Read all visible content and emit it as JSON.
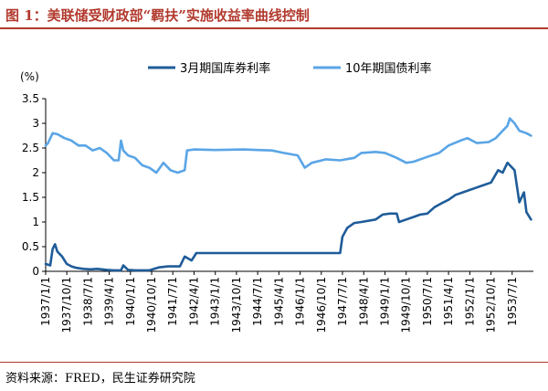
{
  "title": "图 1：美联储受财政部“羁扶”实施收益率曲线控制",
  "source": "资料来源：FRED，民生证券研究院",
  "chart_data": {
    "type": "line",
    "ylabel": "(%)",
    "ylim": [
      0,
      3.5
    ],
    "yticks": [
      0,
      0.5,
      1,
      1.5,
      2,
      2.5,
      3,
      3.5
    ],
    "ytick_labels": [
      "0",
      "0.5",
      "1",
      "1.5",
      "2",
      "2.5",
      "3",
      "3.5"
    ],
    "xlim": [
      "1937-01-01",
      "1954-04-01"
    ],
    "xticks": [
      "1937-01-01",
      "1937-10-01",
      "1938-07-01",
      "1939-04-01",
      "1940-01-01",
      "1940-10-01",
      "1941-07-01",
      "1942-04-01",
      "1943-01-01",
      "1943-10-01",
      "1944-07-01",
      "1945-04-01",
      "1946-01-01",
      "1946-10-01",
      "1947-07-01",
      "1948-04-01",
      "1949-01-01",
      "1949-10-01",
      "1950-07-01",
      "1951-04-01",
      "1952-01-01",
      "1952-10-01",
      "1953-07-01"
    ],
    "xtick_labels": [
      "1937/1/1",
      "1937/10/1",
      "1938/7/1",
      "1939/4/1",
      "1940/1/1",
      "1940/10/1",
      "1941/7/1",
      "1942/4/1",
      "1943/1/1",
      "1943/10/1",
      "1944/7/1",
      "1945/4/1",
      "1946/1/1",
      "1946/10/1",
      "1947/7/1",
      "1948/4/1",
      "1949/1/1",
      "1949/10/1",
      "1950/7/1",
      "1951/4/1",
      "1952/1/1",
      "1952/10/1",
      "1953/7/1"
    ],
    "legend_position": "top",
    "grid": false,
    "series": [
      {
        "name": "3月期国库券利率",
        "color": "#1f5c99",
        "x": [
          "1937-01-01",
          "1937-03-01",
          "1937-04-01",
          "1937-05-01",
          "1937-06-01",
          "1937-08-01",
          "1937-10-01",
          "1937-12-01",
          "1938-02-01",
          "1938-05-01",
          "1938-08-01",
          "1938-11-01",
          "1939-03-01",
          "1939-06-01",
          "1939-09-01",
          "1939-10-01",
          "1939-12-01",
          "1940-03-01",
          "1940-06-01",
          "1940-09-01",
          "1941-01-01",
          "1941-05-01",
          "1941-07-01",
          "1941-10-01",
          "1941-12-01",
          "1942-03-01",
          "1942-05-01",
          "1942-08-01",
          "1943-01-01",
          "1944-01-01",
          "1945-01-01",
          "1946-01-01",
          "1947-01-01",
          "1947-06-01",
          "1947-07-01",
          "1947-09-01",
          "1947-12-01",
          "1948-03-01",
          "1948-09-01",
          "1948-12-01",
          "1949-03-01",
          "1949-06-01",
          "1949-07-01",
          "1949-10-01",
          "1950-01-01",
          "1950-04-01",
          "1950-07-01",
          "1950-10-01",
          "1951-01-01",
          "1951-04-01",
          "1951-07-01",
          "1951-10-01",
          "1952-01-01",
          "1952-04-01",
          "1952-07-01",
          "1952-10-01",
          "1953-01-01",
          "1953-03-01",
          "1953-05-01",
          "1953-06-01",
          "1953-08-01",
          "1953-10-01",
          "1953-12-01",
          "1954-01-01",
          "1954-03-01"
        ],
        "y": [
          0.15,
          0.12,
          0.45,
          0.55,
          0.4,
          0.3,
          0.15,
          0.1,
          0.07,
          0.05,
          0.04,
          0.05,
          0.03,
          0.02,
          0.02,
          0.12,
          0.03,
          0.02,
          0.02,
          0.02,
          0.08,
          0.1,
          0.1,
          0.1,
          0.3,
          0.22,
          0.37,
          0.37,
          0.37,
          0.37,
          0.37,
          0.37,
          0.37,
          0.37,
          0.7,
          0.88,
          0.98,
          1.0,
          1.05,
          1.15,
          1.17,
          1.17,
          1.0,
          1.05,
          1.1,
          1.15,
          1.17,
          1.3,
          1.38,
          1.45,
          1.55,
          1.6,
          1.65,
          1.7,
          1.75,
          1.8,
          2.05,
          2.0,
          2.2,
          2.15,
          2.05,
          1.4,
          1.6,
          1.2,
          1.05
        ]
      },
      {
        "name": "10年期国债利率",
        "color": "#5aa5e6",
        "x": [
          "1937-01-01",
          "1937-02-01",
          "1937-04-01",
          "1937-06-01",
          "1937-09-01",
          "1937-12-01",
          "1938-03-01",
          "1938-06-01",
          "1938-09-01",
          "1938-12-01",
          "1939-03-01",
          "1939-06-01",
          "1939-08-01",
          "1939-09-01",
          "1939-10-01",
          "1939-12-01",
          "1940-03-01",
          "1940-06-01",
          "1940-09-01",
          "1940-12-01",
          "1941-03-01",
          "1941-06-01",
          "1941-09-01",
          "1941-12-01",
          "1942-01-01",
          "1942-04-01",
          "1943-01-01",
          "1944-01-01",
          "1944-07-01",
          "1945-01-01",
          "1945-06-01",
          "1945-12-01",
          "1946-03-01",
          "1946-06-01",
          "1946-12-01",
          "1947-06-01",
          "1947-12-01",
          "1948-03-01",
          "1948-09-01",
          "1949-01-01",
          "1949-06-01",
          "1949-10-01",
          "1950-01-01",
          "1950-07-01",
          "1950-12-01",
          "1951-04-01",
          "1951-09-01",
          "1951-12-01",
          "1952-04-01",
          "1952-09-01",
          "1952-12-01",
          "1953-03-01",
          "1953-05-01",
          "1953-06-01",
          "1953-08-01",
          "1953-10-01",
          "1954-01-01",
          "1954-03-01"
        ],
        "y": [
          2.55,
          2.6,
          2.8,
          2.78,
          2.7,
          2.65,
          2.55,
          2.55,
          2.45,
          2.5,
          2.4,
          2.25,
          2.25,
          2.65,
          2.45,
          2.35,
          2.3,
          2.15,
          2.1,
          2.0,
          2.2,
          2.05,
          2.0,
          2.05,
          2.45,
          2.47,
          2.46,
          2.47,
          2.46,
          2.45,
          2.4,
          2.35,
          2.1,
          2.2,
          2.27,
          2.25,
          2.3,
          2.4,
          2.42,
          2.4,
          2.3,
          2.2,
          2.22,
          2.32,
          2.4,
          2.55,
          2.65,
          2.7,
          2.6,
          2.62,
          2.7,
          2.85,
          2.95,
          3.1,
          3.0,
          2.85,
          2.8,
          2.75
        ]
      }
    ]
  }
}
